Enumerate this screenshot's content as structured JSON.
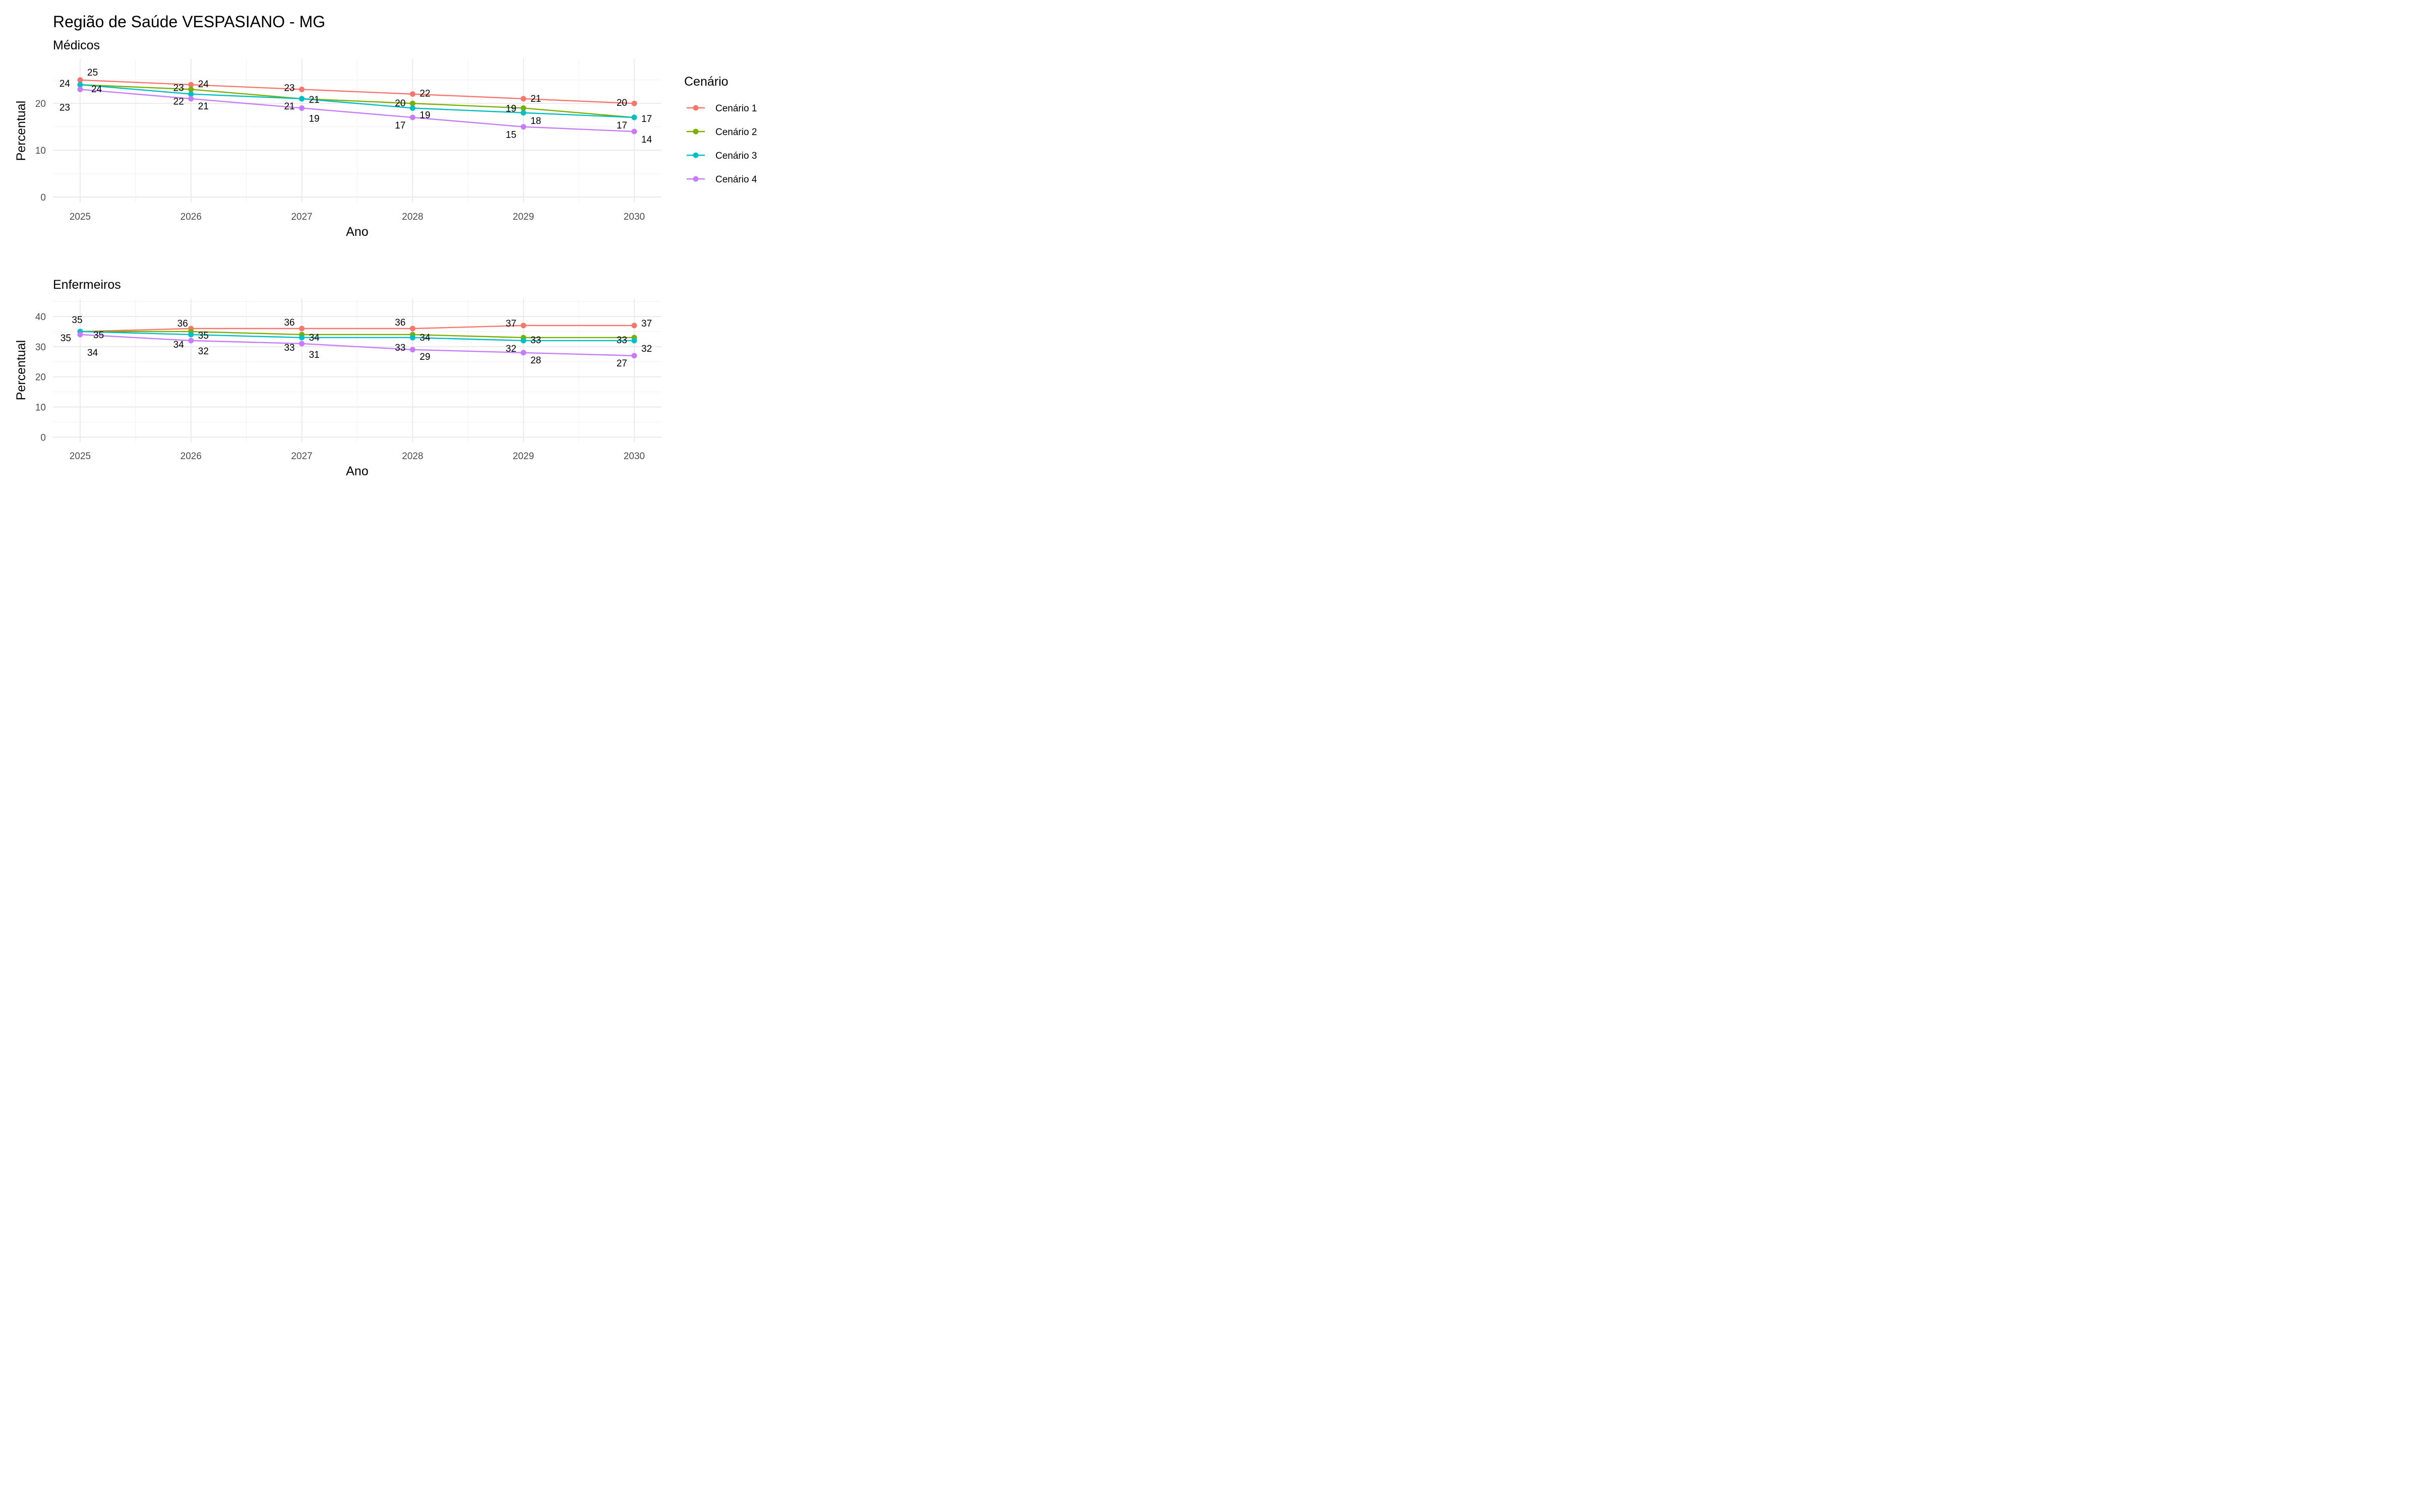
{
  "title": "Região de Saúde VESPASIANO - MG",
  "legend": {
    "title": "Cenário",
    "entries": [
      "Cenário 1",
      "Cenário 2",
      "Cenário 3",
      "Cenário 4"
    ],
    "placement": "right"
  },
  "colors": {
    "Cenário 1": "#F8766D",
    "Cenário 2": "#7CAE00",
    "Cenário 3": "#00BFC4",
    "Cenário 4": "#C77CFF"
  },
  "chart_data": [
    {
      "type": "line",
      "subtitle": "Médicos",
      "xlabel": "Ano",
      "ylabel": "Percentual",
      "x": [
        2025,
        2026,
        2027,
        2028,
        2029,
        2030
      ],
      "xlim": [
        2024.75,
        2030.25
      ],
      "ylim": [
        -1.2,
        29.5
      ],
      "yticks": [
        0,
        10,
        20
      ],
      "grid": true,
      "series": [
        {
          "name": "Cenário 1",
          "values": [
            25,
            24,
            23,
            22,
            21,
            20
          ]
        },
        {
          "name": "Cenário 2",
          "values": [
            24,
            23,
            21,
            20,
            19,
            17
          ]
        },
        {
          "name": "Cenário 3",
          "values": [
            24,
            22,
            21,
            19,
            18,
            17
          ]
        },
        {
          "name": "Cenário 4",
          "values": [
            23,
            21,
            19,
            17,
            15,
            14
          ]
        }
      ]
    },
    {
      "type": "line",
      "subtitle": "Enfermeiros",
      "xlabel": "Ano",
      "ylabel": "Percentual",
      "x": [
        2025,
        2026,
        2027,
        2028,
        2029,
        2030
      ],
      "xlim": [
        2024.75,
        2030.25
      ],
      "ylim": [
        -1.6,
        46
      ],
      "yticks": [
        0,
        10,
        20,
        30,
        40
      ],
      "grid": true,
      "series": [
        {
          "name": "Cenário 1",
          "values": [
            35,
            36,
            36,
            36,
            37,
            37
          ]
        },
        {
          "name": "Cenário 2",
          "values": [
            35,
            35,
            34,
            34,
            33,
            33
          ]
        },
        {
          "name": "Cenário 3",
          "values": [
            35,
            34,
            33,
            33,
            32,
            32
          ]
        },
        {
          "name": "Cenário 4",
          "values": [
            34,
            32,
            31,
            29,
            28,
            27
          ]
        }
      ]
    }
  ]
}
